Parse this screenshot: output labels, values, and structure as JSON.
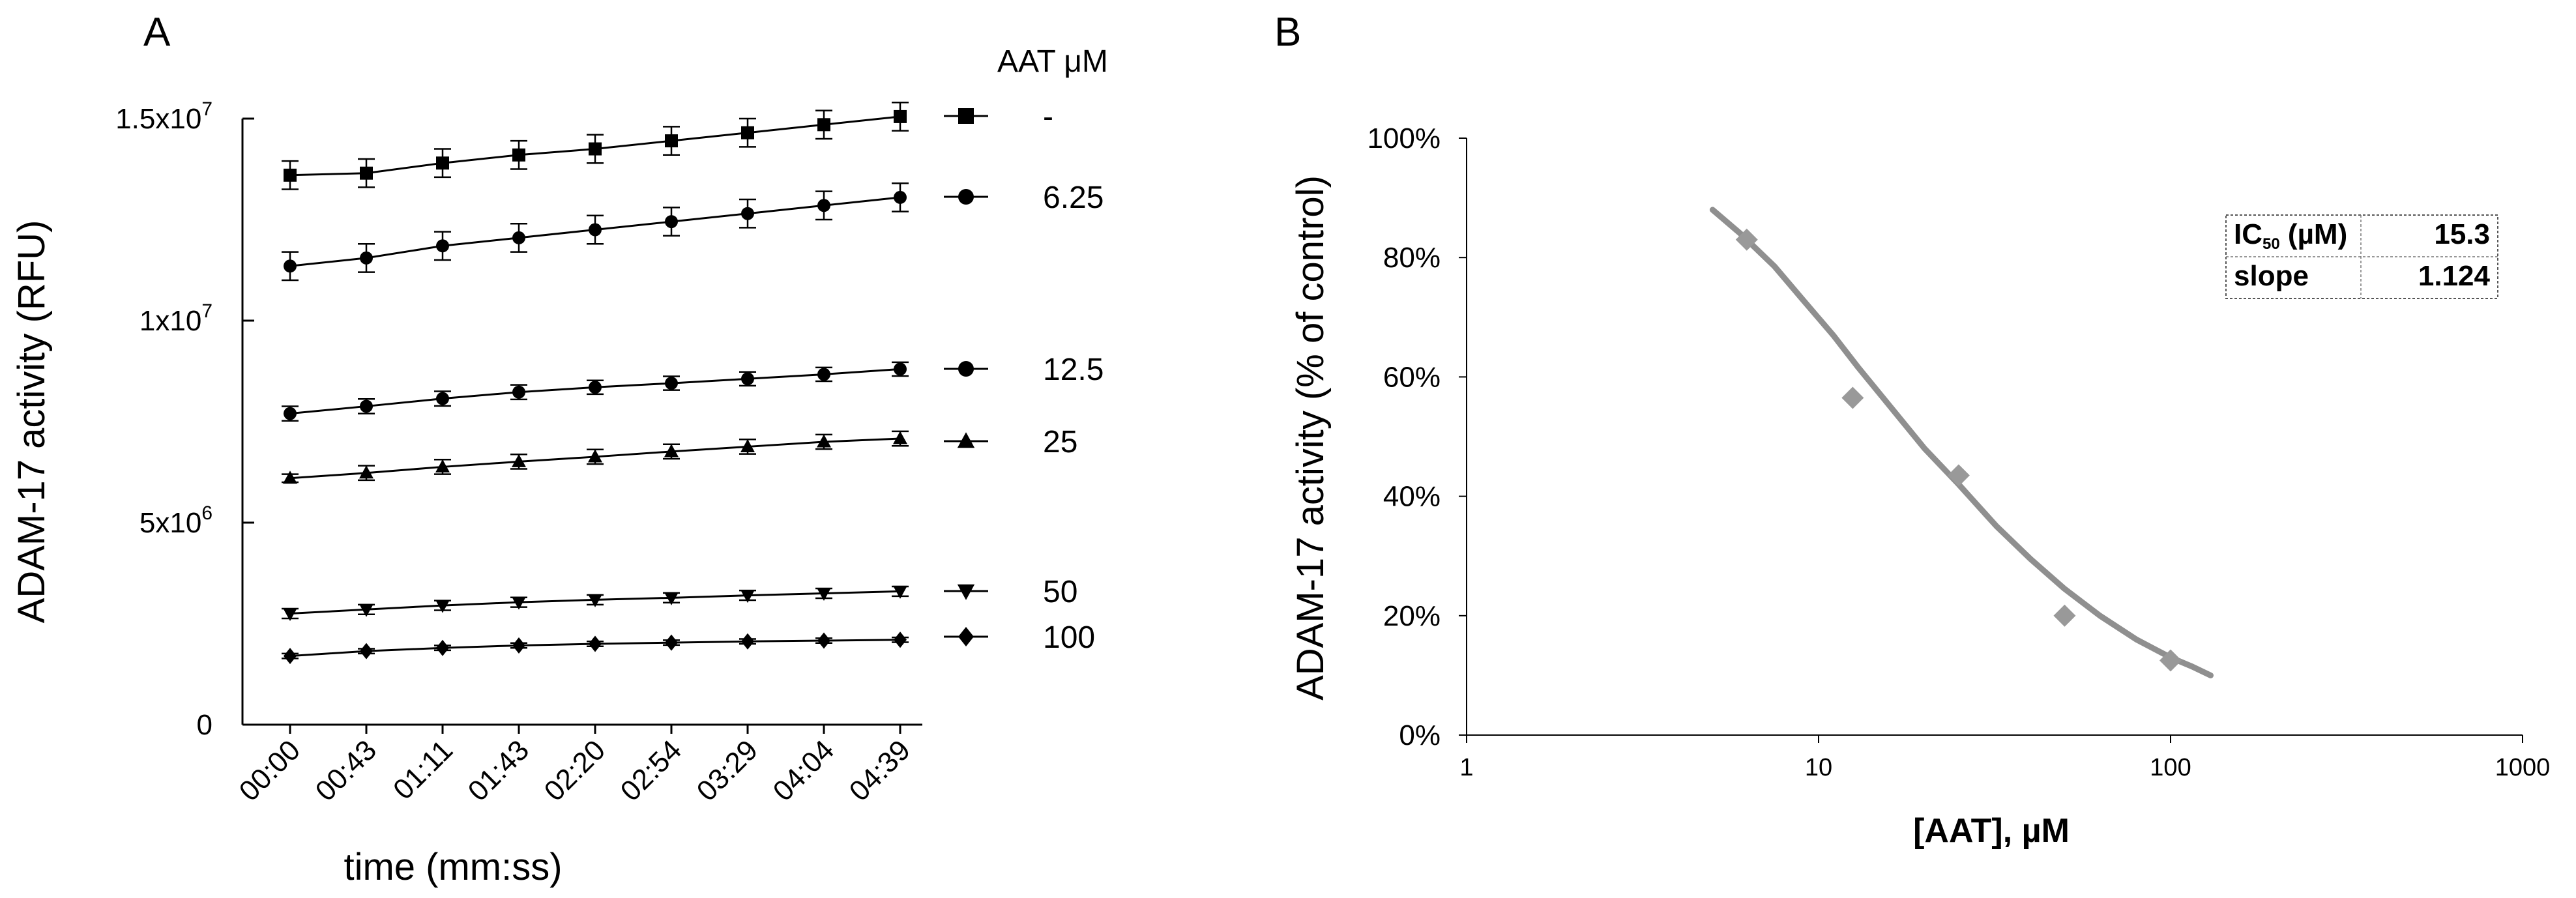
{
  "panels": {
    "a": "A",
    "b": "B"
  },
  "chart_data": [
    {
      "type": "line",
      "panel": "A",
      "title": "",
      "xlabel": "time (mm:ss)",
      "ylabel": "ADAM-17 activity (RFU)",
      "ylim": [
        0,
        15000000
      ],
      "categories": [
        "00:00",
        "00:43",
        "01:11",
        "01:43",
        "02:20",
        "02:54",
        "03:29",
        "04:04",
        "04:39"
      ],
      "y_ticks": [
        {
          "value": 0,
          "label": "0",
          "exp": ""
        },
        {
          "value": 5000000,
          "label": "5x10",
          "exp": "6"
        },
        {
          "value": 10000000,
          "label": "1x10",
          "exp": "7"
        },
        {
          "value": 15000000,
          "label": "1.5x10",
          "exp": "7"
        }
      ],
      "legend_title": "AAT μM",
      "legend_placement": "right",
      "series": [
        {
          "name": "-",
          "marker": "square",
          "values": [
            13600000,
            13650000,
            13900000,
            14100000,
            14250000,
            14450000,
            14650000,
            14850000,
            15050000
          ],
          "errors": [
            350000,
            350000,
            350000,
            350000,
            350000,
            350000,
            350000,
            350000,
            350000
          ]
        },
        {
          "name": "6.25",
          "marker": "circle",
          "values": [
            11350000,
            11550000,
            11850000,
            12050000,
            12250000,
            12450000,
            12650000,
            12850000,
            13050000
          ],
          "errors": [
            350000,
            350000,
            350000,
            350000,
            350000,
            350000,
            350000,
            350000,
            350000
          ]
        },
        {
          "name": "12.5",
          "marker": "circle",
          "values": [
            7700000,
            7880000,
            8070000,
            8230000,
            8350000,
            8450000,
            8560000,
            8670000,
            8800000
          ],
          "errors": [
            180000,
            180000,
            180000,
            180000,
            170000,
            170000,
            170000,
            170000,
            170000
          ]
        },
        {
          "name": "25",
          "marker": "triangle",
          "values": [
            6100000,
            6230000,
            6380000,
            6510000,
            6630000,
            6760000,
            6880000,
            7000000,
            7080000
          ],
          "errors": [
            100000,
            180000,
            180000,
            180000,
            180000,
            180000,
            180000,
            180000,
            180000
          ]
        },
        {
          "name": "50",
          "marker": "triangle-down",
          "values": [
            2750000,
            2850000,
            2950000,
            3030000,
            3090000,
            3140000,
            3200000,
            3250000,
            3300000
          ],
          "errors": [
            120000,
            120000,
            120000,
            120000,
            120000,
            120000,
            120000,
            120000,
            120000
          ]
        },
        {
          "name": "100",
          "marker": "diamond",
          "values": [
            1700000,
            1820000,
            1900000,
            1960000,
            2000000,
            2030000,
            2060000,
            2080000,
            2100000
          ],
          "errors": [
            60000,
            60000,
            60000,
            60000,
            60000,
            60000,
            60000,
            60000,
            60000
          ]
        }
      ]
    },
    {
      "type": "scatter",
      "panel": "B",
      "title": "",
      "xlabel": "[AAT], µM",
      "ylabel": "ADAM-17 activity (% of control)",
      "x_scale": "log",
      "xlim": [
        1,
        1000
      ],
      "ylim": [
        0,
        100
      ],
      "x_ticks": [
        "1",
        "10",
        "100",
        "1000"
      ],
      "y_ticks": [
        "0%",
        "20%",
        "40%",
        "60%",
        "80%",
        "100%"
      ],
      "points": {
        "x": [
          6.25,
          12.5,
          25,
          50,
          100
        ],
        "y": [
          83,
          56.5,
          43.5,
          20,
          12.5
        ]
      },
      "fit_curve": {
        "x": [
          5,
          6,
          7.5,
          9,
          11,
          13,
          16,
          20,
          25,
          32,
          40,
          50,
          63,
          80,
          100,
          115,
          130
        ],
        "y": [
          88,
          84,
          78.5,
          73,
          67,
          61.5,
          55,
          48,
          42,
          35,
          29.5,
          24.5,
          20,
          16,
          13,
          11.5,
          10
        ]
      },
      "stats_table": {
        "rows": [
          {
            "label": "IC",
            "sub": "50",
            "unit": " (µM)",
            "value": "15.3"
          },
          {
            "label": "slope",
            "sub": "",
            "unit": "",
            "value": "1.124"
          }
        ]
      },
      "colors": {
        "marker": "#999999",
        "curve": "#8f8f8f"
      }
    }
  ]
}
